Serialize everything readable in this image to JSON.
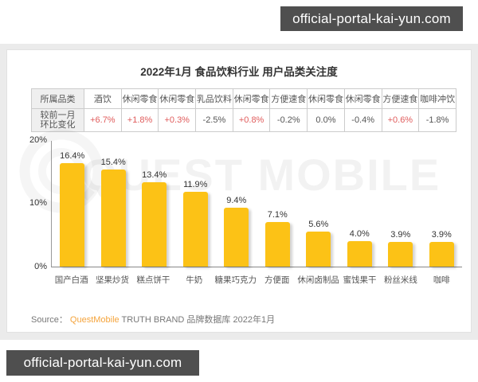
{
  "page": {
    "top_watermark": "official-portal-kai-yun.com",
    "bottom_watermark": "official-portal-kai-yun.com"
  },
  "report": {
    "title": "2022年1月 食品饮料行业 用户品类关注度",
    "brand_watermark": "QUEST MOBILE",
    "source_prefix": "Source：",
    "source_brand": "QuestMobile",
    "source_suffix": " TRUTH BRAND 品牌数据库 2022年1月"
  },
  "table": {
    "row1_label": "所属品类",
    "row2_label_line1": "较前一月",
    "row2_label_line2": "环比变化",
    "columns": [
      {
        "category": "酒饮",
        "change": "+6.7%",
        "positive": true
      },
      {
        "category": "休闲零食",
        "change": "+1.8%",
        "positive": true
      },
      {
        "category": "休闲零食",
        "change": "+0.3%",
        "positive": true
      },
      {
        "category": "乳品饮料",
        "change": "-2.5%",
        "positive": false
      },
      {
        "category": "休闲零食",
        "change": "+0.8%",
        "positive": true
      },
      {
        "category": "方便速食",
        "change": "-0.2%",
        "positive": false
      },
      {
        "category": "休闲零食",
        "change": "0.0%",
        "positive": false
      },
      {
        "category": "休闲零食",
        "change": "-0.4%",
        "positive": false
      },
      {
        "category": "方便速食",
        "change": "+0.6%",
        "positive": true
      },
      {
        "category": "咖啡冲饮",
        "change": "-1.8%",
        "positive": false
      }
    ]
  },
  "chart_data": {
    "type": "bar",
    "title": "2022年1月 食品饮料行业 用户品类关注度",
    "categories": [
      "国产白酒",
      "坚果炒货",
      "糕点饼干",
      "牛奶",
      "糖果巧克力",
      "方便面",
      "休闲卤制品",
      "蜜饯果干",
      "粉丝米线",
      "咖啡"
    ],
    "values": [
      16.4,
      15.4,
      13.4,
      11.9,
      9.4,
      7.1,
      5.6,
      4.0,
      3.9,
      3.9
    ],
    "value_labels": [
      "16.4%",
      "15.4%",
      "13.4%",
      "11.9%",
      "9.4%",
      "7.1%",
      "5.6%",
      "4.0%",
      "3.9%",
      "3.9%"
    ],
    "parent_categories": [
      "酒饮",
      "休闲零食",
      "休闲零食",
      "乳品饮料",
      "休闲零食",
      "方便速食",
      "休闲零食",
      "休闲零食",
      "方便速食",
      "咖啡冲饮"
    ],
    "mom_changes": [
      "+6.7%",
      "+1.8%",
      "+0.3%",
      "-2.5%",
      "+0.8%",
      "-0.2%",
      "0.0%",
      "-0.4%",
      "+0.6%",
      "-1.8%"
    ],
    "xlabel": "",
    "ylabel": "",
    "ytick_labels": [
      "20%",
      "10%",
      "0%"
    ],
    "ylim": [
      0,
      20
    ],
    "grid": false,
    "legend": null
  },
  "colors": {
    "bar": "#FCC216",
    "positive_change": "#E05C5C",
    "negative_change": "#555555",
    "source_brand": "#F5A43C",
    "watermark_box": "#4F4F4F"
  }
}
